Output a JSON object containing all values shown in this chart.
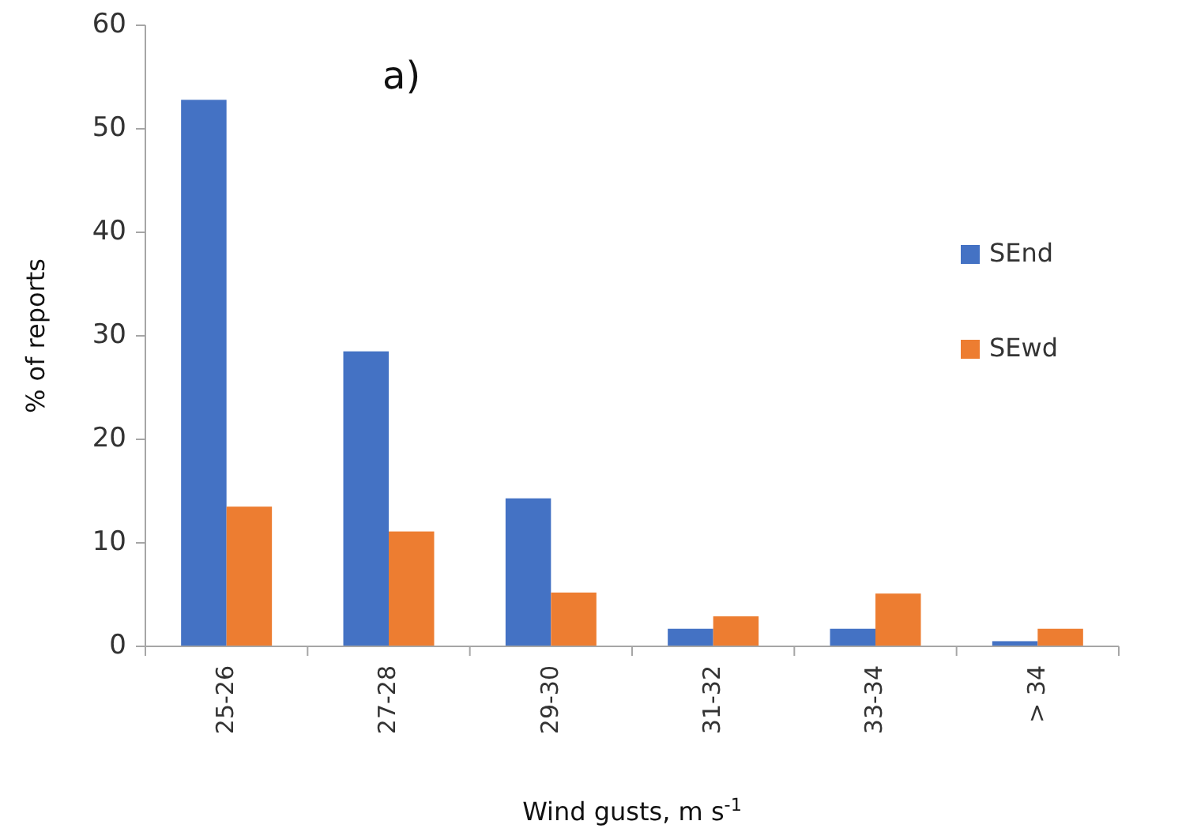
{
  "chart_data": {
    "type": "bar",
    "title": "a)",
    "xlabel": "Wind gusts, m s$^{-1}$",
    "ylabel": "% of reports",
    "categories": [
      "25-26",
      "27-28",
      "29-30",
      "31-32",
      "33-34",
      "> 34"
    ],
    "series": [
      {
        "name": "SEnd",
        "color": "#4472c4",
        "values": [
          52.8,
          28.5,
          14.3,
          1.7,
          1.7,
          0.5
        ]
      },
      {
        "name": "SEwd",
        "color": "#ed7d31",
        "values": [
          13.5,
          11.1,
          5.2,
          2.9,
          5.1,
          1.7
        ]
      }
    ],
    "ylim": [
      0,
      60
    ],
    "yticks": [
      0,
      10,
      20,
      30,
      40,
      50,
      60
    ],
    "grid": false,
    "legend": "right"
  }
}
